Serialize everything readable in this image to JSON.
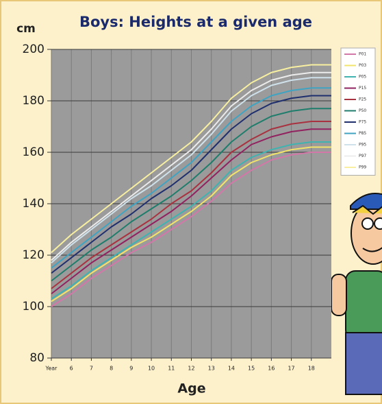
{
  "chart_data": {
    "type": "line",
    "title": "Boys: Heights at a given age",
    "y_label": "cm",
    "x_label": "Age",
    "x": [
      5,
      6,
      7,
      8,
      9,
      10,
      11,
      12,
      13,
      14,
      15,
      16,
      17,
      18,
      19
    ],
    "xlim": [
      5,
      19
    ],
    "xticks": [
      {
        "value": 5,
        "label": "Year"
      },
      6,
      7,
      8,
      9,
      10,
      11,
      12,
      13,
      14,
      15,
      16,
      17,
      18
    ],
    "ylim": [
      80,
      200
    ],
    "yticks": [
      80,
      100,
      120,
      140,
      160,
      180,
      200
    ],
    "grid": true,
    "legend_position": "right",
    "series": [
      {
        "name": "P01",
        "color": "#d377a8",
        "values": [
          100,
          105,
          111,
          116,
          121,
          125,
          130,
          135,
          141,
          148,
          153,
          157,
          159,
          160,
          160
        ]
      },
      {
        "name": "P03",
        "color": "#f2e46a",
        "values": [
          102,
          107,
          113,
          118,
          123,
          127,
          132,
          137,
          143,
          151,
          156,
          159,
          161,
          162,
          162
        ]
      },
      {
        "name": "P05",
        "color": "#3fb3b0",
        "values": [
          103,
          108,
          114,
          119,
          124,
          129,
          134,
          139,
          145,
          153,
          158,
          161,
          163,
          164,
          164
        ]
      },
      {
        "name": "P15",
        "color": "#92215f",
        "values": [
          105,
          111,
          117,
          122,
          127,
          132,
          137,
          143,
          150,
          157,
          163,
          166,
          168,
          169,
          169
        ]
      },
      {
        "name": "P25",
        "color": "#a8323f",
        "values": [
          107,
          113,
          119,
          124,
          129,
          134,
          140,
          145,
          152,
          160,
          165,
          169,
          171,
          172,
          172
        ]
      },
      {
        "name": "P50",
        "color": "#1f7d6c",
        "values": [
          110,
          116,
          122,
          127,
          133,
          138,
          143,
          149,
          156,
          164,
          170,
          174,
          176,
          177,
          177
        ]
      },
      {
        "name": "P75",
        "color": "#1f2f6e",
        "values": [
          113,
          119,
          125,
          131,
          136,
          142,
          147,
          153,
          161,
          169,
          175,
          179,
          181,
          182,
          182
        ]
      },
      {
        "name": "P85",
        "color": "#3fa3c2",
        "values": [
          115,
          121,
          127,
          133,
          139,
          144,
          150,
          156,
          164,
          172,
          178,
          182,
          184,
          185,
          185
        ]
      },
      {
        "name": "P95",
        "color": "#cfe2ec",
        "values": [
          117,
          124,
          130,
          136,
          142,
          147,
          153,
          159,
          167,
          176,
          182,
          186,
          188,
          189,
          189
        ]
      },
      {
        "name": "P97",
        "color": "#ececec",
        "values": [
          118,
          125,
          131,
          137,
          143,
          149,
          155,
          161,
          169,
          178,
          184,
          188,
          190,
          191,
          191
        ]
      },
      {
        "name": "P99",
        "color": "#f8f0a0",
        "values": [
          121,
          128,
          134,
          140,
          146,
          152,
          158,
          164,
          172,
          181,
          187,
          191,
          193,
          194,
          194
        ]
      }
    ]
  }
}
